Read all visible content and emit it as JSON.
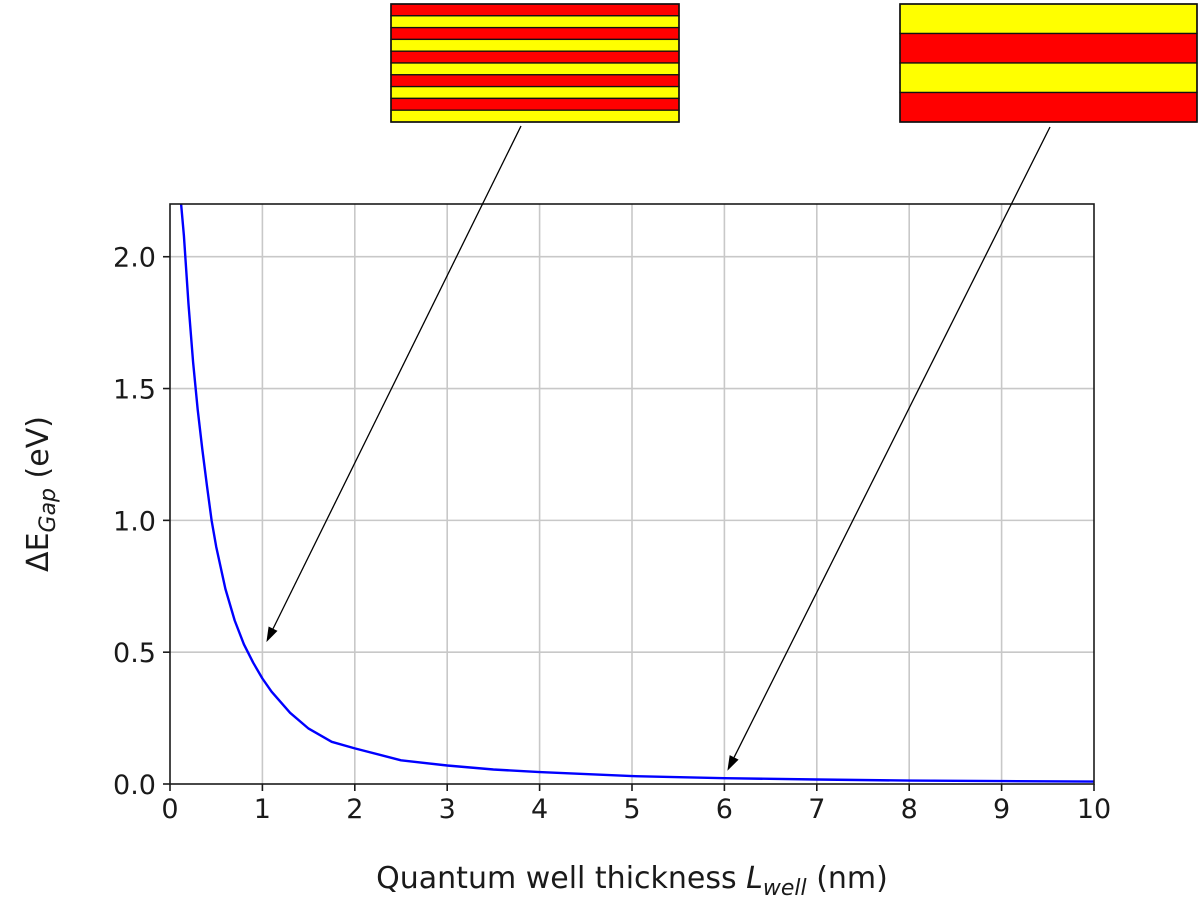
{
  "chart_data": {
    "type": "line",
    "title": "",
    "xlabel": {
      "prefix": "Quantum well thickness ",
      "symbol": "L",
      "subscript": "well",
      "unit": " (nm)"
    },
    "ylabel": {
      "prefix": "ΔE",
      "subscript": "Gap",
      "unit": " (eV)"
    },
    "xlim": [
      0,
      10
    ],
    "ylim": [
      0,
      2.2
    ],
    "x_ticks": [
      0,
      1,
      2,
      3,
      4,
      5,
      6,
      7,
      8,
      9,
      10
    ],
    "x_tick_labels": [
      "0",
      "1",
      "2",
      "3",
      "4",
      "5",
      "6",
      "7",
      "8",
      "9",
      "10"
    ],
    "y_ticks": [
      0,
      0.5,
      1,
      1.5,
      2
    ],
    "y_tick_labels": [
      "0.0",
      "0.5",
      "1.0",
      "1.5",
      "2.0"
    ],
    "grid": true,
    "series": [
      {
        "color": "#0000ff",
        "x": [
          0.12,
          0.15,
          0.2,
          0.25,
          0.3,
          0.35,
          0.4,
          0.45,
          0.5,
          0.6,
          0.7,
          0.8,
          0.9,
          1.0,
          1.1,
          1.2,
          1.3,
          1.5,
          1.75,
          2.0,
          2.5,
          3.0,
          3.5,
          4.0,
          5.0,
          6.0,
          7.0,
          8.0,
          9.0,
          10.0
        ],
        "y": [
          2.2,
          2.08,
          1.82,
          1.6,
          1.42,
          1.27,
          1.13,
          1.0,
          0.9,
          0.74,
          0.62,
          0.53,
          0.46,
          0.4,
          0.35,
          0.31,
          0.27,
          0.21,
          0.16,
          0.135,
          0.09,
          0.07,
          0.055,
          0.045,
          0.03,
          0.022,
          0.017,
          0.013,
          0.011,
          0.009
        ]
      }
    ],
    "annotations": [
      {
        "type": "arrow",
        "target": [
          1.0,
          0.5
        ],
        "points_to": "thin-layer-diagram"
      },
      {
        "type": "arrow",
        "target": [
          6.0,
          0.02
        ],
        "points_to": "thick-layer-diagram"
      }
    ],
    "insets": [
      {
        "name": "thin-layer-diagram",
        "stripes": 10,
        "colors": [
          "#ff0000",
          "#ffff00"
        ]
      },
      {
        "name": "thick-layer-diagram",
        "stripes": 4,
        "colors": [
          "#ffff00",
          "#ff0000"
        ]
      }
    ]
  }
}
